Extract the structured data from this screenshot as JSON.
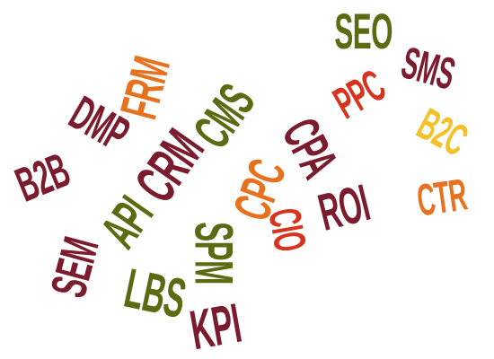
{
  "palette": {
    "maroon": "#7a1c2e",
    "olive": "#5a6b12",
    "orange": "#e8711f",
    "red": "#d8331e",
    "yellow": "#f2c22a"
  },
  "words": [
    {
      "text": "SEO",
      "color": "#5a6b12"
    },
    {
      "text": "SMS",
      "color": "#7a1c2e"
    },
    {
      "text": "PPC",
      "color": "#d8331e"
    },
    {
      "text": "B2C",
      "color": "#f2c22a"
    },
    {
      "text": "CTR",
      "color": "#e8711f"
    },
    {
      "text": "CPA",
      "color": "#7a1c2e"
    },
    {
      "text": "CPC",
      "color": "#e8711f"
    },
    {
      "text": "ROI",
      "color": "#7a1c2e"
    },
    {
      "text": "CIO",
      "color": "#d8331e"
    },
    {
      "text": "CMS",
      "color": "#5a6b12"
    },
    {
      "text": "FRM",
      "color": "#e8711f"
    },
    {
      "text": "DMP",
      "color": "#7a1c2e"
    },
    {
      "text": "CRM",
      "color": "#7a1c2e"
    },
    {
      "text": "API",
      "color": "#5a6b12"
    },
    {
      "text": "B2B",
      "color": "#7a1c2e"
    },
    {
      "text": "SPM",
      "color": "#5a6b12"
    },
    {
      "text": "SEM",
      "color": "#7a1c2e"
    },
    {
      "text": "LBS",
      "color": "#5a6b12"
    },
    {
      "text": "KPI",
      "color": "#7a1c2e"
    }
  ]
}
